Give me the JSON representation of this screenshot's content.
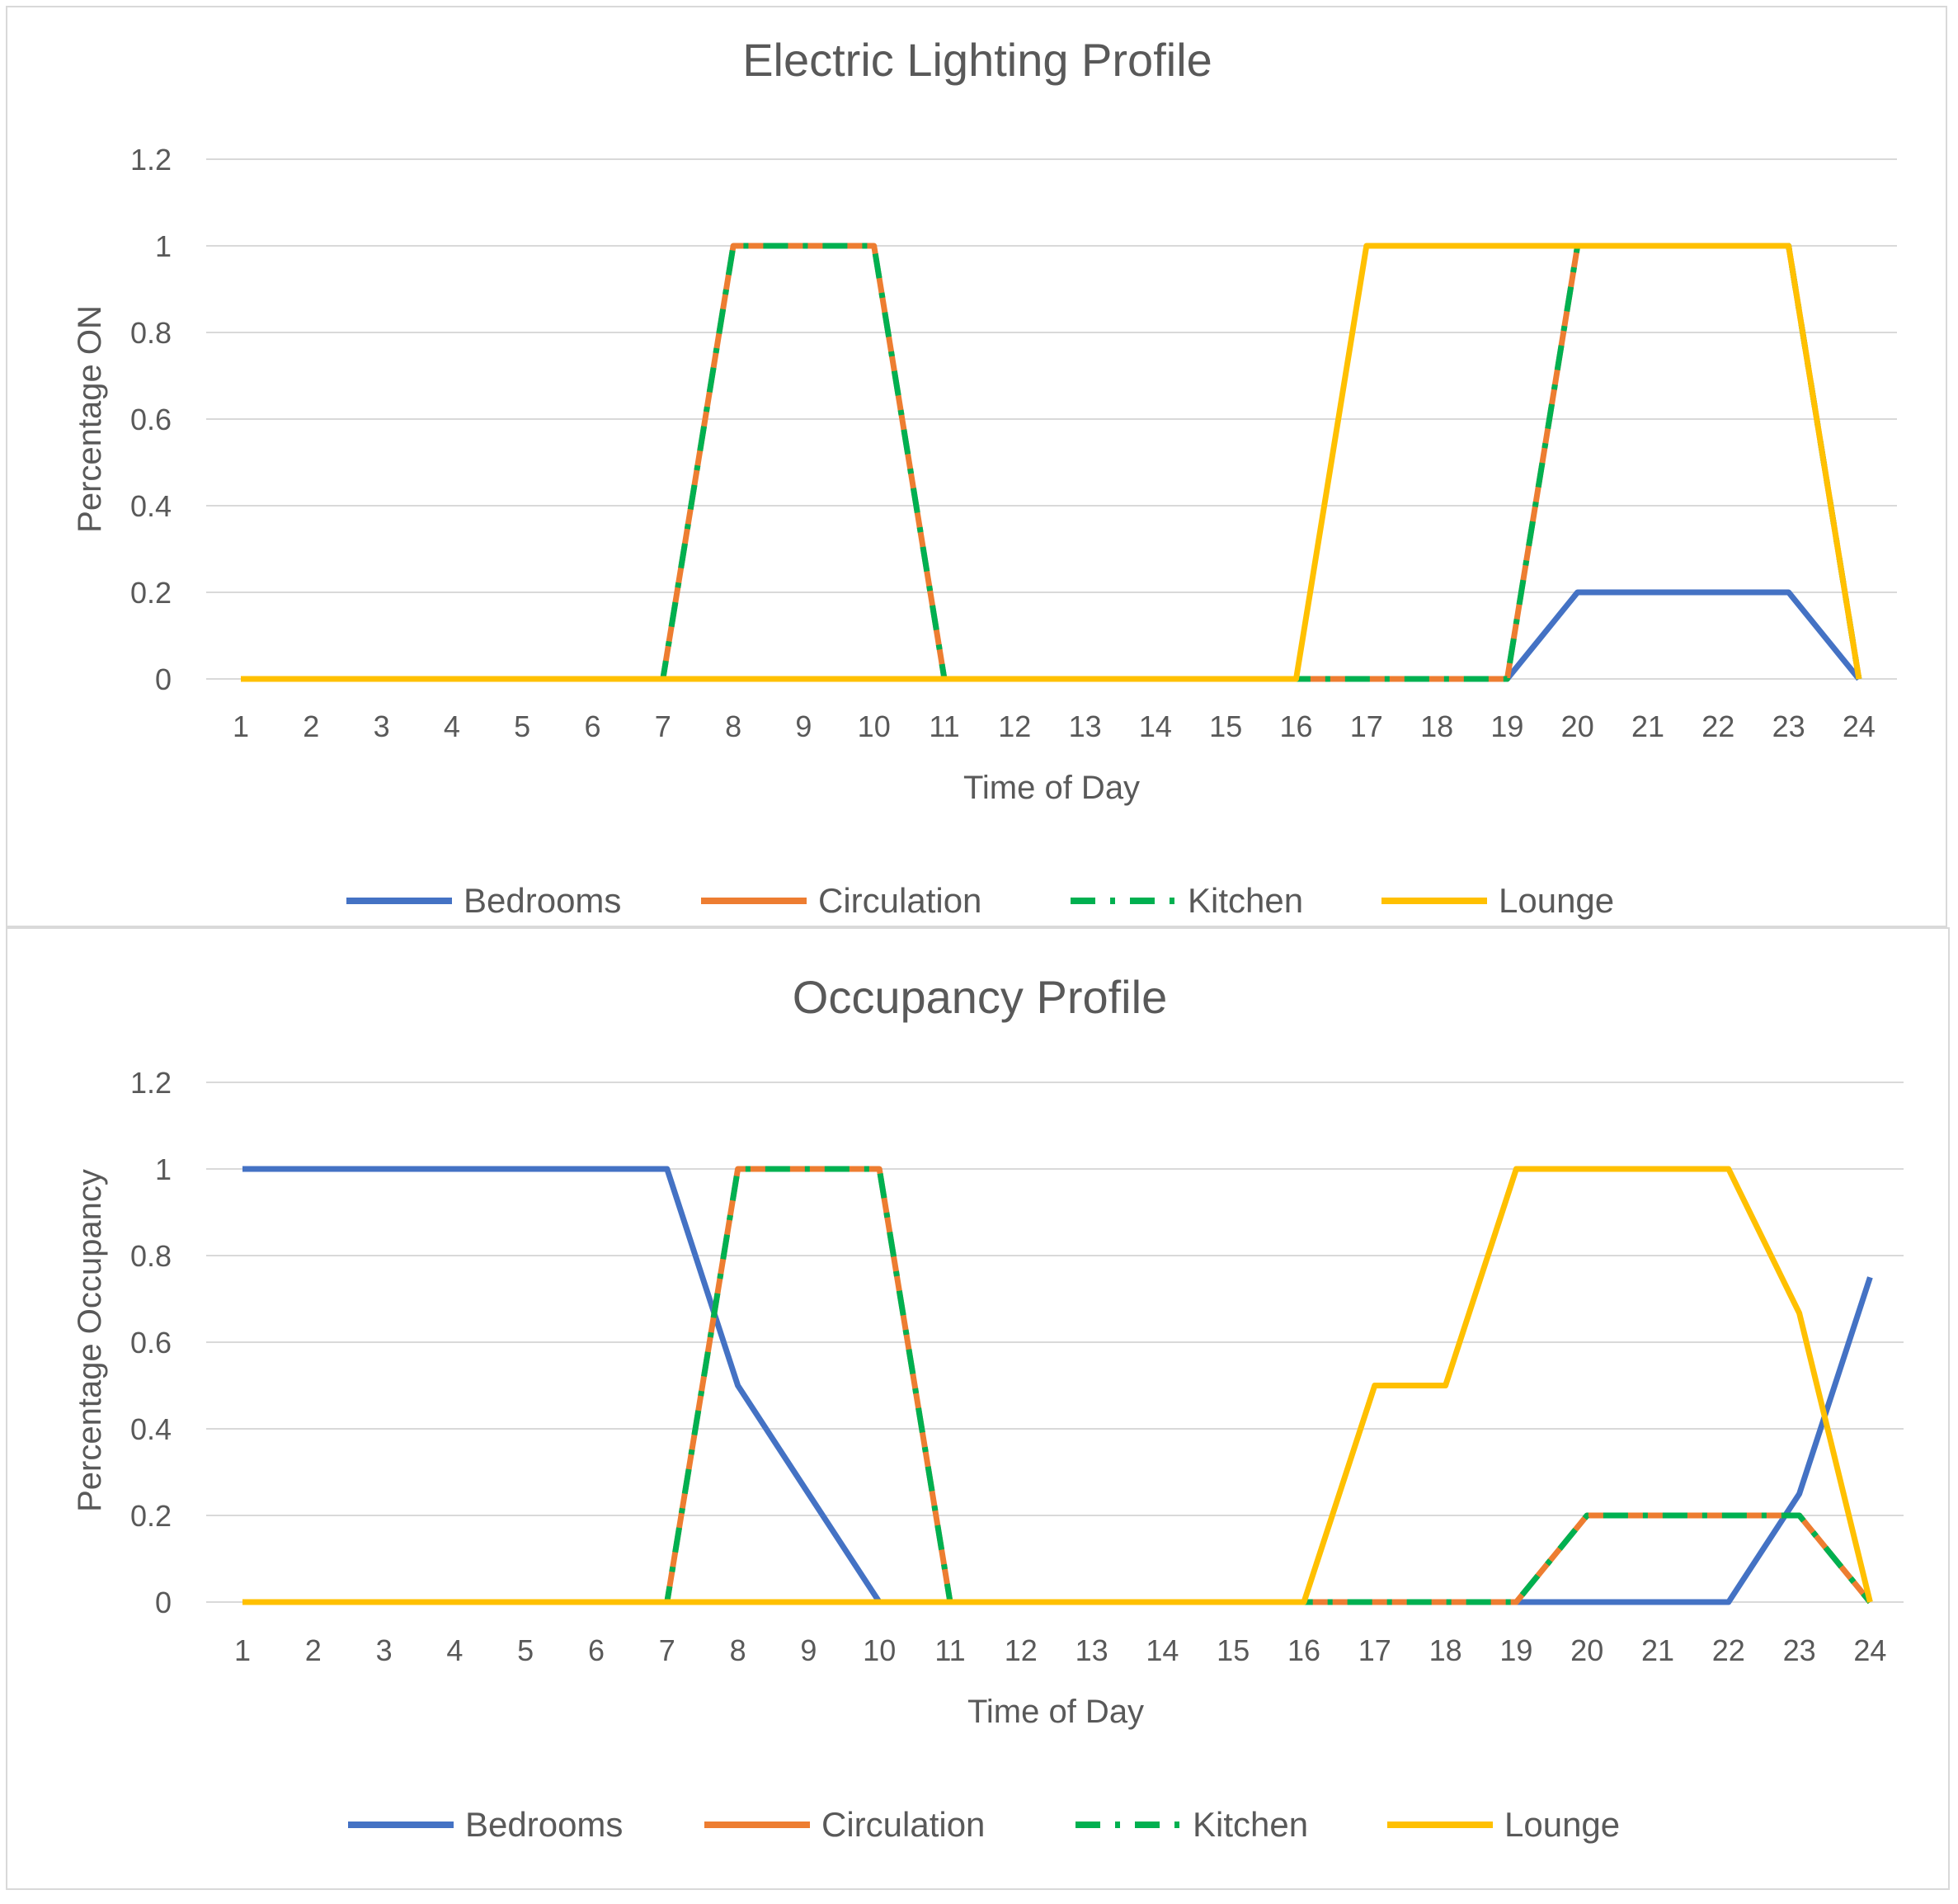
{
  "charts": [
    {
      "title": "Electric Lighting Profile",
      "xlabel": "Time of Day",
      "ylabel": "Percentage ON",
      "legend_title": ""
    },
    {
      "title": "Occupancy Profile",
      "xlabel": "Time of Day",
      "ylabel": "Percentage Occupancy",
      "legend_title": ""
    }
  ],
  "colors": {
    "Bedrooms": "#4472C4",
    "Circulation": "#ED7D31",
    "Kitchen": "#00B050",
    "Lounge": "#FFC000",
    "grid": "#d9d9d9",
    "text": "#595959",
    "border": "#d9d9d9"
  },
  "chart_data": [
    {
      "type": "line",
      "title": "Electric Lighting Profile",
      "xlabel": "Time of Day",
      "ylabel": "Percentage ON",
      "categories": [
        "1",
        "2",
        "3",
        "4",
        "5",
        "6",
        "7",
        "8",
        "9",
        "10",
        "11",
        "12",
        "13",
        "14",
        "15",
        "16",
        "17",
        "18",
        "19",
        "20",
        "21",
        "22",
        "23",
        "24"
      ],
      "yticks": [
        "0",
        "0.2",
        "0.4",
        "0.6",
        "0.8",
        "1",
        "1.2"
      ],
      "ylim": [
        0,
        1.2
      ],
      "grid": true,
      "legend_position": "bottom",
      "series": [
        {
          "name": "Bedrooms",
          "values": [
            0,
            0,
            0,
            0,
            0,
            0,
            0,
            0,
            0,
            0,
            0,
            0,
            0,
            0,
            0,
            0,
            0,
            0,
            0,
            0.2,
            0.2,
            0.2,
            0.2,
            0
          ]
        },
        {
          "name": "Circulation",
          "values": [
            0,
            0,
            0,
            0,
            0,
            0,
            0,
            1,
            1,
            1,
            0,
            0,
            0,
            0,
            0,
            0,
            0,
            0,
            0,
            1,
            1,
            1,
            1,
            0
          ]
        },
        {
          "name": "Kitchen",
          "values": [
            0,
            0,
            0,
            0,
            0,
            0,
            0,
            1,
            1,
            1,
            0,
            0,
            0,
            0,
            0,
            0,
            0,
            0,
            0,
            1,
            1,
            1,
            1,
            0
          ]
        },
        {
          "name": "Lounge",
          "values": [
            0,
            0,
            0,
            0,
            0,
            0,
            0,
            0,
            0,
            0,
            0,
            0,
            0,
            0,
            0,
            0,
            1,
            1,
            1,
            1,
            1,
            1,
            1,
            0
          ]
        }
      ]
    },
    {
      "type": "line",
      "title": "Occupancy Profile",
      "xlabel": "Time of Day",
      "ylabel": "Percentage Occupancy",
      "categories": [
        "1",
        "2",
        "3",
        "4",
        "5",
        "6",
        "7",
        "8",
        "9",
        "10",
        "11",
        "12",
        "13",
        "14",
        "15",
        "16",
        "17",
        "18",
        "19",
        "20",
        "21",
        "22",
        "23",
        "24"
      ],
      "yticks": [
        "0",
        "0.2",
        "0.4",
        "0.6",
        "0.8",
        "1",
        "1.2"
      ],
      "ylim": [
        0,
        1.2
      ],
      "grid": true,
      "legend_position": "bottom",
      "series": [
        {
          "name": "Bedrooms",
          "values": [
            1,
            1,
            1,
            1,
            1,
            1,
            1,
            0.5,
            0.25,
            0,
            0,
            0,
            0,
            0,
            0,
            0,
            0,
            0,
            0,
            0,
            0,
            0,
            0.25,
            0.75
          ]
        },
        {
          "name": "Circulation",
          "values": [
            0,
            0,
            0,
            0,
            0,
            0,
            0,
            1,
            1,
            1,
            0,
            0,
            0,
            0,
            0,
            0,
            0,
            0,
            0,
            0.2,
            0.2,
            0.2,
            0.2,
            0
          ]
        },
        {
          "name": "Kitchen",
          "values": [
            0,
            0,
            0,
            0,
            0,
            0,
            0,
            1,
            1,
            1,
            0,
            0,
            0,
            0,
            0,
            0,
            0,
            0,
            0,
            0.2,
            0.2,
            0.2,
            0.2,
            0
          ]
        },
        {
          "name": "Lounge",
          "values": [
            0,
            0,
            0,
            0,
            0,
            0,
            0,
            0,
            0,
            0,
            0,
            0,
            0,
            0,
            0,
            0,
            0.5,
            0.5,
            1,
            1,
            1,
            1,
            0.667,
            0
          ]
        }
      ]
    }
  ]
}
